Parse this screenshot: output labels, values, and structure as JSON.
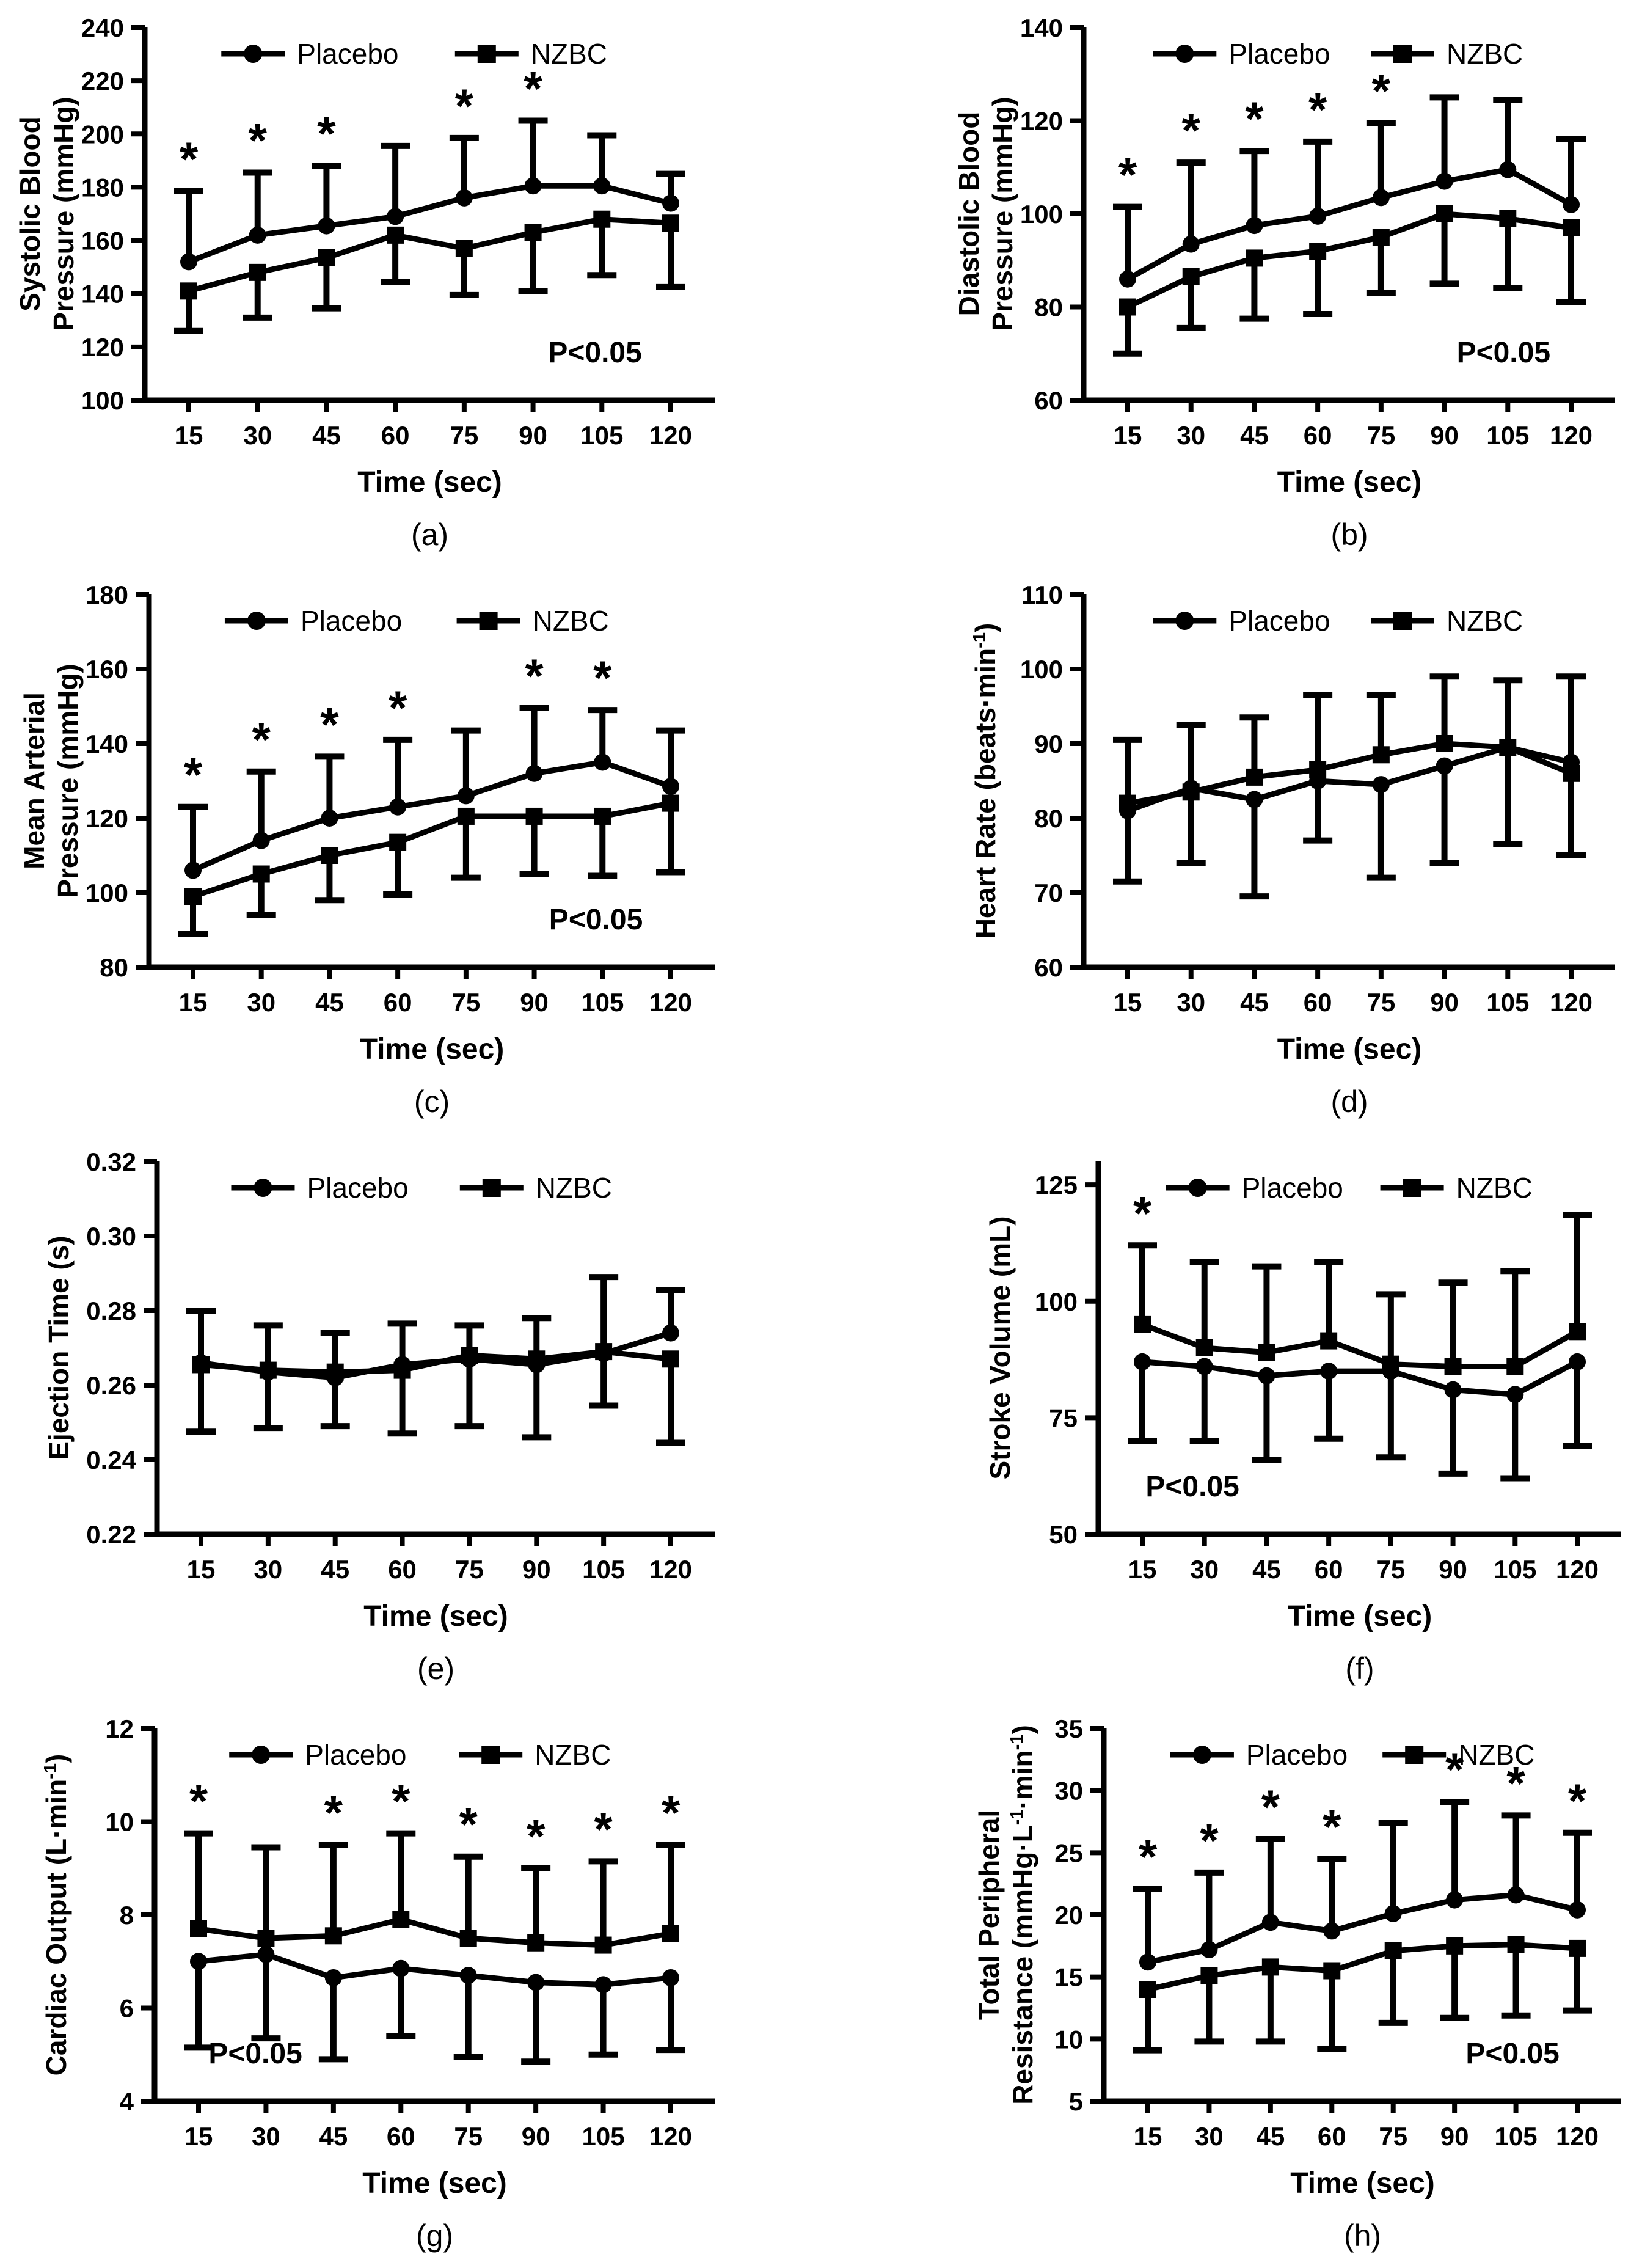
{
  "figure": {
    "xlabel": "Time (sec)",
    "x_values": [
      15,
      30,
      45,
      60,
      75,
      90,
      105,
      120
    ],
    "legend": [
      "Placebo",
      "NZBC"
    ],
    "significance_note": "P<0.05",
    "colors": {
      "ink": "#000000",
      "background": "#ffffff"
    }
  },
  "chart_data": [
    {
      "type": "line",
      "panel": "(a)",
      "ylabel_lines": [
        "Systolic Blood",
        "Pressure (mmHg)"
      ],
      "xlabel": "Time (sec)",
      "x": [
        15,
        30,
        45,
        60,
        75,
        90,
        105,
        120
      ],
      "ylim": [
        100,
        240
      ],
      "yticks": [
        100,
        120,
        140,
        160,
        180,
        200,
        220,
        240
      ],
      "ytick_decimals": 0,
      "series": [
        {
          "name": "Placebo",
          "marker": "circle",
          "values": [
            152,
            162,
            165.5,
            169,
            176,
            180.5,
            180.5,
            174
          ],
          "err_up": [
            178.5,
            185.5,
            188,
            195.5,
            198.5,
            205,
            199.5,
            185
          ],
          "err_down": null
        },
        {
          "name": "NZBC",
          "marker": "square",
          "values": [
            141,
            148,
            153.5,
            162,
            157,
            163,
            168,
            166.5
          ],
          "err_up": null,
          "err_down": [
            126,
            131,
            134.5,
            144.5,
            139.5,
            141,
            147,
            142.5
          ]
        }
      ],
      "asterisk_x": [
        15,
        30,
        45,
        75,
        90
      ],
      "p_text": "P<0.05",
      "p_pos": "bottom-right"
    },
    {
      "type": "line",
      "panel": "(b)",
      "ylabel_lines": [
        "Diastolic Blood",
        "Pressure (mmHg)"
      ],
      "xlabel": "Time (sec)",
      "x": [
        15,
        30,
        45,
        60,
        75,
        90,
        105,
        120
      ],
      "ylim": [
        60,
        140
      ],
      "yticks": [
        60,
        80,
        100,
        120,
        140
      ],
      "ytick_decimals": 0,
      "series": [
        {
          "name": "Placebo",
          "marker": "circle",
          "values": [
            86,
            93.5,
            97.5,
            99.5,
            103.5,
            107,
            109.5,
            102
          ],
          "err_up": [
            101.5,
            111,
            113.5,
            115.5,
            119.5,
            125,
            124.5,
            116
          ],
          "err_down": null
        },
        {
          "name": "NZBC",
          "marker": "square",
          "values": [
            80,
            86.5,
            90.5,
            92,
            95,
            100,
            99,
            97
          ],
          "err_up": null,
          "err_down": [
            70,
            75.5,
            77.5,
            78.5,
            83,
            85,
            84,
            81
          ]
        }
      ],
      "asterisk_x": [
        15,
        30,
        45,
        60,
        75
      ],
      "p_text": "P<0.05",
      "p_pos": "bottom-right"
    },
    {
      "type": "line",
      "panel": "(c)",
      "ylabel_lines": [
        "Mean Arterial",
        "Pressure (mmHg)"
      ],
      "xlabel": "Time (sec)",
      "x": [
        15,
        30,
        45,
        60,
        75,
        90,
        105,
        120
      ],
      "ylim": [
        80,
        180
      ],
      "yticks": [
        80,
        100,
        120,
        140,
        160,
        180
      ],
      "ytick_decimals": 0,
      "series": [
        {
          "name": "Placebo",
          "marker": "circle",
          "values": [
            106,
            114,
            120,
            123,
            126,
            132,
            135,
            128.5
          ],
          "err_up": [
            123,
            132.5,
            136.5,
            141,
            143.5,
            149.5,
            149,
            143.5
          ],
          "err_down": null
        },
        {
          "name": "NZBC",
          "marker": "square",
          "values": [
            99,
            105,
            110,
            113.5,
            120.5,
            120.5,
            120.5,
            124
          ],
          "err_up": null,
          "err_down": [
            89,
            94,
            98,
            99.5,
            104,
            105,
            104.5,
            105.5
          ]
        }
      ],
      "asterisk_x": [
        15,
        30,
        45,
        60,
        90,
        105
      ],
      "p_text": "P<0.05",
      "p_pos": "bottom-right"
    },
    {
      "type": "line",
      "panel": "(d)",
      "ylabel_lines": [
        "Heart Rate (beats·min⁻¹)"
      ],
      "xlabel": "Time (sec)",
      "x": [
        15,
        30,
        45,
        60,
        75,
        90,
        105,
        120
      ],
      "ylim": [
        60,
        110
      ],
      "yticks": [
        60,
        70,
        80,
        90,
        100,
        110
      ],
      "ytick_decimals": 0,
      "series": [
        {
          "name": "Placebo",
          "marker": "circle",
          "values": [
            81,
            84,
            82.5,
            85,
            84.5,
            87,
            89.5,
            87.5
          ],
          "err_up": null,
          "err_down": [
            71.5,
            74,
            69.5,
            77,
            72,
            74,
            76.5,
            75
          ]
        },
        {
          "name": "NZBC",
          "marker": "square",
          "values": [
            82,
            83.5,
            85.5,
            86.5,
            88.5,
            90,
            89.5,
            86
          ],
          "err_up": [
            90.5,
            92.5,
            93.5,
            96.5,
            96.5,
            99,
            98.5,
            99
          ],
          "err_down": null
        }
      ],
      "asterisk_x": [],
      "p_text": null,
      "p_pos": null
    },
    {
      "type": "line",
      "panel": "(e)",
      "ylabel_lines": [
        "Ejection Time (s)"
      ],
      "xlabel": "Time (sec)",
      "x": [
        15,
        30,
        45,
        60,
        75,
        90,
        105,
        120
      ],
      "ylim": [
        0.22,
        0.32
      ],
      "yticks": [
        0.22,
        0.24,
        0.26,
        0.28,
        0.3,
        0.32
      ],
      "ytick_decimals": 2,
      "series": [
        {
          "name": "Placebo",
          "marker": "circle",
          "values": [
            0.266,
            0.2635,
            0.262,
            0.2655,
            0.267,
            0.2655,
            0.2685,
            0.274
          ],
          "err_up": [
            0.28,
            0.276,
            0.274,
            0.2765,
            0.276,
            0.278,
            0.289,
            0.2855
          ],
          "err_down": null
        },
        {
          "name": "NZBC",
          "marker": "square",
          "values": [
            0.2655,
            0.264,
            0.2635,
            0.264,
            0.268,
            0.267,
            0.269,
            0.267
          ],
          "err_up": null,
          "err_down": [
            0.2475,
            0.2485,
            0.249,
            0.247,
            0.249,
            0.246,
            0.2545,
            0.2445
          ]
        }
      ],
      "asterisk_x": [],
      "p_text": null,
      "p_pos": null
    },
    {
      "type": "line",
      "panel": "(f)",
      "ylabel_lines": [
        "Stroke Volume (mL)"
      ],
      "xlabel": "Time (sec)",
      "x": [
        15,
        30,
        45,
        60,
        75,
        90,
        105,
        120
      ],
      "ylim": [
        50,
        130
      ],
      "yticks": [
        50,
        75,
        100,
        125
      ],
      "ytick_decimals": 0,
      "series": [
        {
          "name": "Placebo",
          "marker": "circle",
          "values": [
            87,
            86,
            84,
            85,
            85,
            81,
            80,
            87
          ],
          "err_up": null,
          "err_down": [
            70,
            70,
            66,
            70.5,
            66.5,
            63,
            62,
            69
          ]
        },
        {
          "name": "NZBC",
          "marker": "square",
          "values": [
            95,
            90,
            89,
            91.5,
            86.5,
            86,
            86,
            93.5
          ],
          "err_up": [
            112,
            108.5,
            107.5,
            108.5,
            101.5,
            104,
            106.5,
            118.5
          ],
          "err_down": null
        }
      ],
      "asterisk_x": [
        15
      ],
      "p_text": "P<0.05",
      "p_pos": "bottom-left"
    },
    {
      "type": "line",
      "panel": "(g)",
      "ylabel_lines": [
        "Cardiac Output (L·min⁻¹)"
      ],
      "xlabel": "Time (sec)",
      "x": [
        15,
        30,
        45,
        60,
        75,
        90,
        105,
        120
      ],
      "ylim": [
        4,
        12
      ],
      "yticks": [
        4,
        6,
        8,
        10,
        12
      ],
      "ytick_decimals": 0,
      "series": [
        {
          "name": "Placebo",
          "marker": "circle",
          "values": [
            7.0,
            7.15,
            6.65,
            6.85,
            6.7,
            6.55,
            6.5,
            6.65
          ],
          "err_up": null,
          "err_down": [
            5.15,
            5.35,
            4.9,
            5.4,
            4.95,
            4.85,
            5.0,
            5.1
          ]
        },
        {
          "name": "NZBC",
          "marker": "square",
          "values": [
            7.7,
            7.5,
            7.55,
            7.9,
            7.5,
            7.4,
            7.35,
            7.6
          ],
          "err_up": [
            9.75,
            9.45,
            9.5,
            9.75,
            9.25,
            9.0,
            9.15,
            9.5
          ],
          "err_down": null
        }
      ],
      "asterisk_x": [
        15,
        45,
        60,
        75,
        90,
        105,
        120
      ],
      "p_text": "P<0.05",
      "p_pos": "bottom-left"
    },
    {
      "type": "line",
      "panel": "(h)",
      "ylabel_lines": [
        "Total Peripheral",
        "Resistance (mmHg·L⁻¹·min⁻¹)"
      ],
      "xlabel": "Time (sec)",
      "x": [
        15,
        30,
        45,
        60,
        75,
        90,
        105,
        120
      ],
      "ylim": [
        5,
        35
      ],
      "yticks": [
        5,
        10,
        15,
        20,
        25,
        30,
        35
      ],
      "ytick_decimals": 0,
      "series": [
        {
          "name": "Placebo",
          "marker": "circle",
          "values": [
            16.2,
            17.2,
            19.4,
            18.7,
            20.1,
            21.2,
            21.6,
            20.4
          ],
          "err_up": [
            22.1,
            23.4,
            26.1,
            24.5,
            27.4,
            29.1,
            28,
            26.6
          ],
          "err_down": null
        },
        {
          "name": "NZBC",
          "marker": "square",
          "values": [
            14,
            15.1,
            15.8,
            15.5,
            17.1,
            17.5,
            17.6,
            17.3
          ],
          "err_up": null,
          "err_down": [
            9.1,
            9.8,
            9.8,
            9.2,
            11.3,
            11.7,
            11.9,
            12.3
          ]
        }
      ],
      "asterisk_x": [
        15,
        30,
        45,
        60,
        90,
        105,
        120
      ],
      "p_text": "P<0.05",
      "p_pos": "bottom-right"
    }
  ]
}
